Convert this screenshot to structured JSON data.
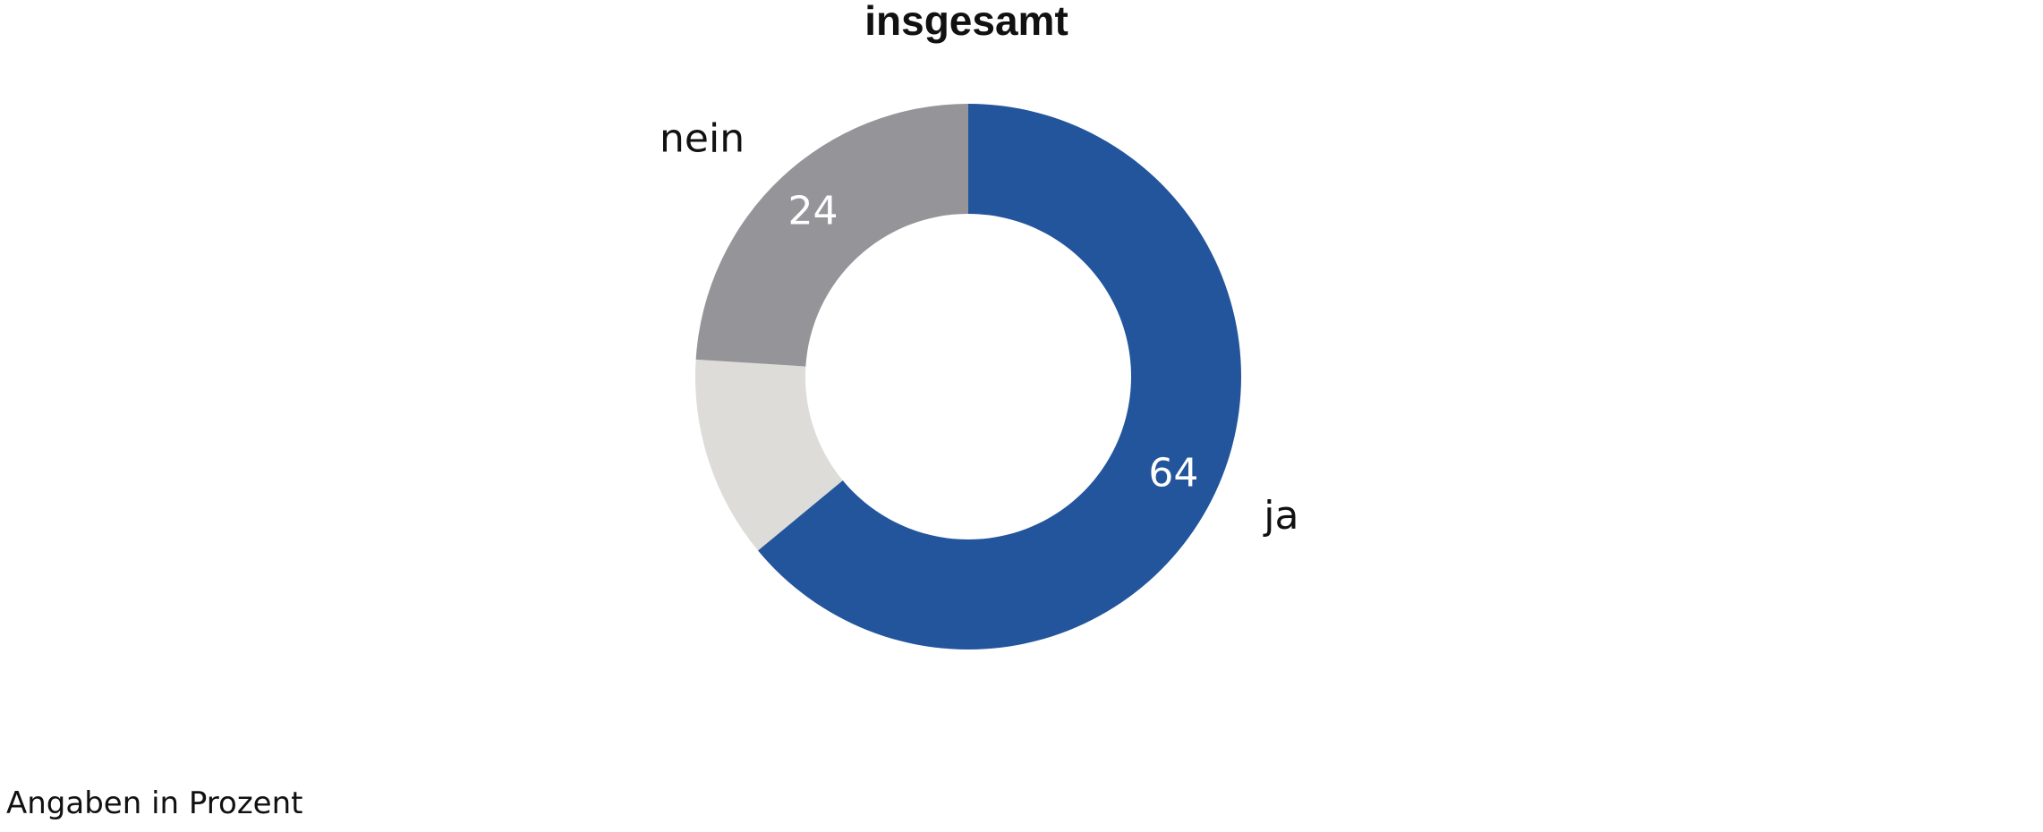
{
  "chart_data": {
    "type": "pie",
    "title": "insgesamt",
    "categories": [
      "ja",
      "",
      "nein"
    ],
    "values": [
      64,
      12,
      24
    ],
    "value_labels": [
      "64",
      "",
      "24"
    ],
    "colors": [
      "#23559c",
      "#dddcd8",
      "#959498"
    ],
    "hole": "donut",
    "start": "top",
    "direction": "clockwise"
  },
  "footnote": "Angaben in Prozent"
}
